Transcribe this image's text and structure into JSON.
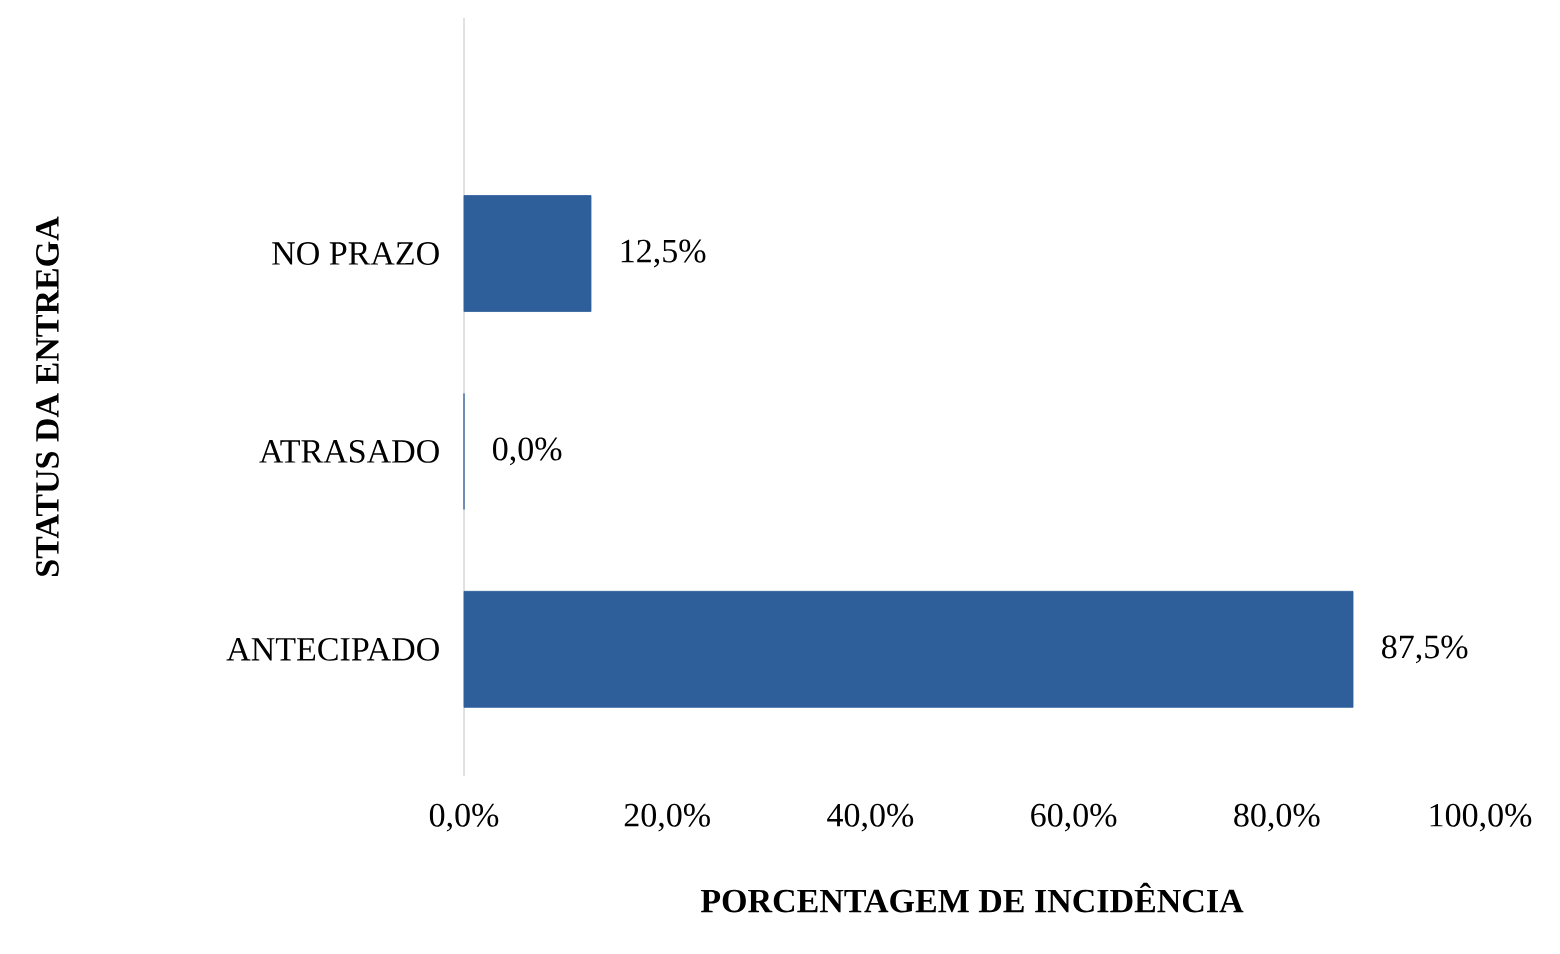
{
  "chart_data": {
    "type": "bar",
    "orientation": "horizontal",
    "xlabel": "PORCENTAGEM DE INCIDÊNCIA",
    "ylabel": "STATUS DA ENTREGA",
    "categories": [
      "NO PRAZO",
      "ATRASADO",
      "ANTECIPADO"
    ],
    "values": [
      12.5,
      0,
      87.5
    ],
    "value_labels": [
      "12,5%",
      "0,0%",
      "87,5%"
    ],
    "color": "#2e5f9a",
    "xlim": [
      0,
      100
    ],
    "xticks": [
      {
        "value": 0,
        "label": "0,0%"
      },
      {
        "value": 20,
        "label": "20,0%"
      },
      {
        "value": 40,
        "label": "40,0%"
      },
      {
        "value": 60,
        "label": "60,0%"
      },
      {
        "value": 80,
        "label": "80,0%"
      },
      {
        "value": 100,
        "label": "100,0%"
      }
    ],
    "grid": false
  }
}
